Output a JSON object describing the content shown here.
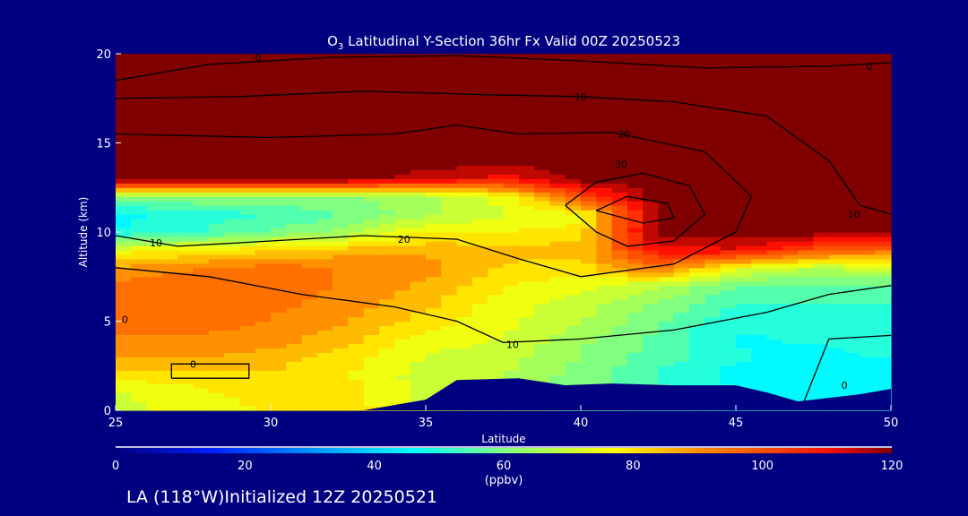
{
  "chart_data": {
    "type": "heatmap",
    "title_main": "O",
    "title_sub": "3",
    "title_rest": " Latitudinal Y-Section 36hr  Fx Valid 00Z 20250523",
    "xlabel": "Latitude",
    "ylabel": "Altitude (km)",
    "xlim": [
      25,
      50
    ],
    "ylim": [
      0,
      20
    ],
    "xticks": [
      "25",
      "30",
      "35",
      "40",
      "45",
      "50"
    ],
    "yticks": [
      "0",
      "5",
      "10",
      "15",
      "20"
    ],
    "grid": false,
    "lat": [
      25,
      27.5,
      30,
      32.5,
      35,
      37.5,
      40,
      42.5,
      45,
      47.5,
      50
    ],
    "alt": [
      0,
      1,
      2,
      3,
      4,
      5,
      6,
      7,
      8,
      9,
      10,
      11,
      12,
      13,
      14,
      15,
      16,
      17,
      18,
      19,
      20
    ],
    "ozone_ppbv": [
      [
        70,
        75,
        78,
        80,
        72,
        65,
        60,
        55,
        50,
        48,
        48
      ],
      [
        72,
        76,
        80,
        80,
        70,
        66,
        60,
        55,
        48,
        46,
        46
      ],
      [
        80,
        80,
        82,
        78,
        70,
        68,
        60,
        52,
        46,
        45,
        45
      ],
      [
        88,
        88,
        85,
        80,
        72,
        70,
        62,
        55,
        48,
        46,
        48
      ],
      [
        92,
        92,
        90,
        84,
        75,
        72,
        64,
        56,
        47,
        48,
        50
      ],
      [
        95,
        95,
        92,
        88,
        80,
        74,
        68,
        58,
        48,
        50,
        52
      ],
      [
        95,
        95,
        94,
        90,
        84,
        75,
        70,
        62,
        52,
        52,
        52
      ],
      [
        94,
        96,
        96,
        92,
        86,
        78,
        74,
        68,
        58,
        56,
        58
      ],
      [
        88,
        92,
        95,
        92,
        90,
        82,
        80,
        95,
        75,
        68,
        70
      ],
      [
        75,
        78,
        82,
        85,
        86,
        84,
        85,
        110,
        112,
        100,
        95
      ],
      [
        48,
        52,
        58,
        65,
        78,
        78,
        80,
        120,
        120,
        120,
        120
      ],
      [
        45,
        50,
        52,
        58,
        66,
        72,
        75,
        120,
        120,
        120,
        120
      ],
      [
        62,
        62,
        62,
        62,
        66,
        75,
        100,
        120,
        120,
        120,
        120
      ],
      [
        120,
        120,
        120,
        120,
        115,
        110,
        120,
        120,
        120,
        120,
        120
      ],
      [
        120,
        120,
        120,
        120,
        120,
        120,
        120,
        120,
        120,
        120,
        120
      ],
      [
        120,
        120,
        120,
        120,
        120,
        120,
        120,
        120,
        120,
        120,
        120
      ],
      [
        120,
        120,
        120,
        120,
        120,
        120,
        120,
        120,
        120,
        120,
        120
      ],
      [
        120,
        120,
        120,
        120,
        120,
        120,
        120,
        120,
        120,
        120,
        120
      ],
      [
        120,
        120,
        120,
        120,
        120,
        120,
        120,
        120,
        120,
        120,
        120
      ],
      [
        120,
        120,
        120,
        120,
        120,
        120,
        120,
        120,
        120,
        120,
        120
      ],
      [
        120,
        120,
        120,
        120,
        120,
        120,
        120,
        120,
        120,
        120,
        120
      ]
    ],
    "terrain_km": [
      [
        33,
        0
      ],
      [
        35,
        0.6
      ],
      [
        36,
        1.7
      ],
      [
        38,
        1.8
      ],
      [
        39.5,
        1.4
      ],
      [
        41,
        1.5
      ],
      [
        43,
        1.4
      ],
      [
        45,
        1.4
      ],
      [
        46,
        1.0
      ],
      [
        47,
        0.5
      ],
      [
        49,
        0.9
      ],
      [
        50,
        1.2
      ],
      [
        50,
        0
      ]
    ],
    "contours": [
      {
        "level": 0,
        "points": [
          [
            25,
            18.5
          ],
          [
            28,
            19.4
          ],
          [
            32,
            19.8
          ],
          [
            36,
            19.9
          ],
          [
            40,
            19.6
          ],
          [
            44,
            19.2
          ],
          [
            48,
            19.3
          ],
          [
            50,
            19.5
          ]
        ]
      },
      {
        "level": 10,
        "points": [
          [
            25,
            17.5
          ],
          [
            29,
            17.6
          ],
          [
            33,
            17.9
          ],
          [
            37,
            17.7
          ],
          [
            40,
            17.6
          ],
          [
            43,
            17.3
          ],
          [
            46,
            16.5
          ],
          [
            48,
            14
          ],
          [
            49,
            11.5
          ],
          [
            50,
            11
          ]
        ]
      },
      {
        "level": 20,
        "points": [
          [
            25,
            15.5
          ],
          [
            30,
            15.3
          ],
          [
            34,
            15.5
          ],
          [
            36,
            16
          ],
          [
            38,
            15.5
          ],
          [
            41,
            15.6
          ],
          [
            44,
            14.5
          ],
          [
            45.5,
            12
          ],
          [
            45,
            10
          ],
          [
            43,
            8.2
          ],
          [
            40,
            7.5
          ],
          [
            38,
            8.5
          ],
          [
            36,
            9.6
          ],
          [
            33,
            9.8
          ],
          [
            30,
            9.5
          ],
          [
            27,
            9.2
          ],
          [
            25,
            9.8
          ]
        ]
      },
      {
        "level": 30,
        "points": [
          [
            39.5,
            11.5
          ],
          [
            40.5,
            12.8
          ],
          [
            42,
            13.3
          ],
          [
            43.5,
            12.6
          ],
          [
            44,
            11
          ],
          [
            43,
            9.5
          ],
          [
            41.5,
            9.2
          ],
          [
            40.5,
            10
          ],
          [
            39.5,
            11.5
          ]
        ]
      },
      {
        "level": 40,
        "points": [
          [
            40.5,
            11.2
          ],
          [
            41.5,
            12
          ],
          [
            42.8,
            11.6
          ],
          [
            43,
            10.8
          ],
          [
            42,
            10.5
          ],
          [
            40.5,
            11.2
          ]
        ]
      },
      {
        "level": 10,
        "points": [
          [
            25,
            8
          ],
          [
            28,
            7.5
          ],
          [
            31,
            6.5
          ],
          [
            34,
            5.8
          ],
          [
            36,
            5
          ],
          [
            37.5,
            3.8
          ],
          [
            40,
            4
          ],
          [
            43,
            4.5
          ],
          [
            46,
            5.5
          ],
          [
            48,
            6.5
          ],
          [
            50,
            7
          ]
        ]
      },
      {
        "level": 0,
        "points": [
          [
            26.8,
            1.8
          ],
          [
            26.8,
            2.6
          ],
          [
            29.3,
            2.6
          ],
          [
            29.3,
            1.8
          ],
          [
            26.8,
            1.8
          ]
        ]
      },
      {
        "level": 0,
        "points": [
          [
            47.2,
            0.5
          ],
          [
            48,
            4
          ],
          [
            50,
            4.2
          ]
        ]
      }
    ],
    "contour_labels": [
      {
        "text": "0",
        "lat": 29.6,
        "alt": 19.8
      },
      {
        "text": "0",
        "lat": 49.3,
        "alt": 19.3
      },
      {
        "text": "10",
        "lat": 40.0,
        "alt": 17.6
      },
      {
        "text": "20",
        "lat": 41.4,
        "alt": 15.5
      },
      {
        "text": "30",
        "lat": 41.3,
        "alt": 13.8
      },
      {
        "text": "10",
        "lat": 48.8,
        "alt": 11.0
      },
      {
        "text": "10",
        "lat": 26.3,
        "alt": 9.4
      },
      {
        "text": "20",
        "lat": 34.3,
        "alt": 9.6
      },
      {
        "text": "10",
        "lat": 37.8,
        "alt": 3.7
      },
      {
        "text": "0",
        "lat": 27.5,
        "alt": 2.6
      },
      {
        "text": "0",
        "lat": 25.3,
        "alt": 5.1
      },
      {
        "text": "0",
        "lat": 48.5,
        "alt": 1.4
      }
    ],
    "colorbar": {
      "ticks": [
        "0",
        "20",
        "40",
        "60",
        "80",
        "100",
        "120"
      ],
      "range": [
        0,
        120
      ],
      "unit": "(ppbv)",
      "stops": [
        [
          0,
          "#00007f"
        ],
        [
          15,
          "#0020ff"
        ],
        [
          30,
          "#0090ff"
        ],
        [
          46,
          "#00ffff"
        ],
        [
          60,
          "#80ff80"
        ],
        [
          77,
          "#ffff00"
        ],
        [
          90,
          "#ff9000"
        ],
        [
          110,
          "#ff1000"
        ],
        [
          120,
          "#800000"
        ]
      ]
    },
    "footer": "LA (118°W)Initialized 12Z 20250521"
  }
}
